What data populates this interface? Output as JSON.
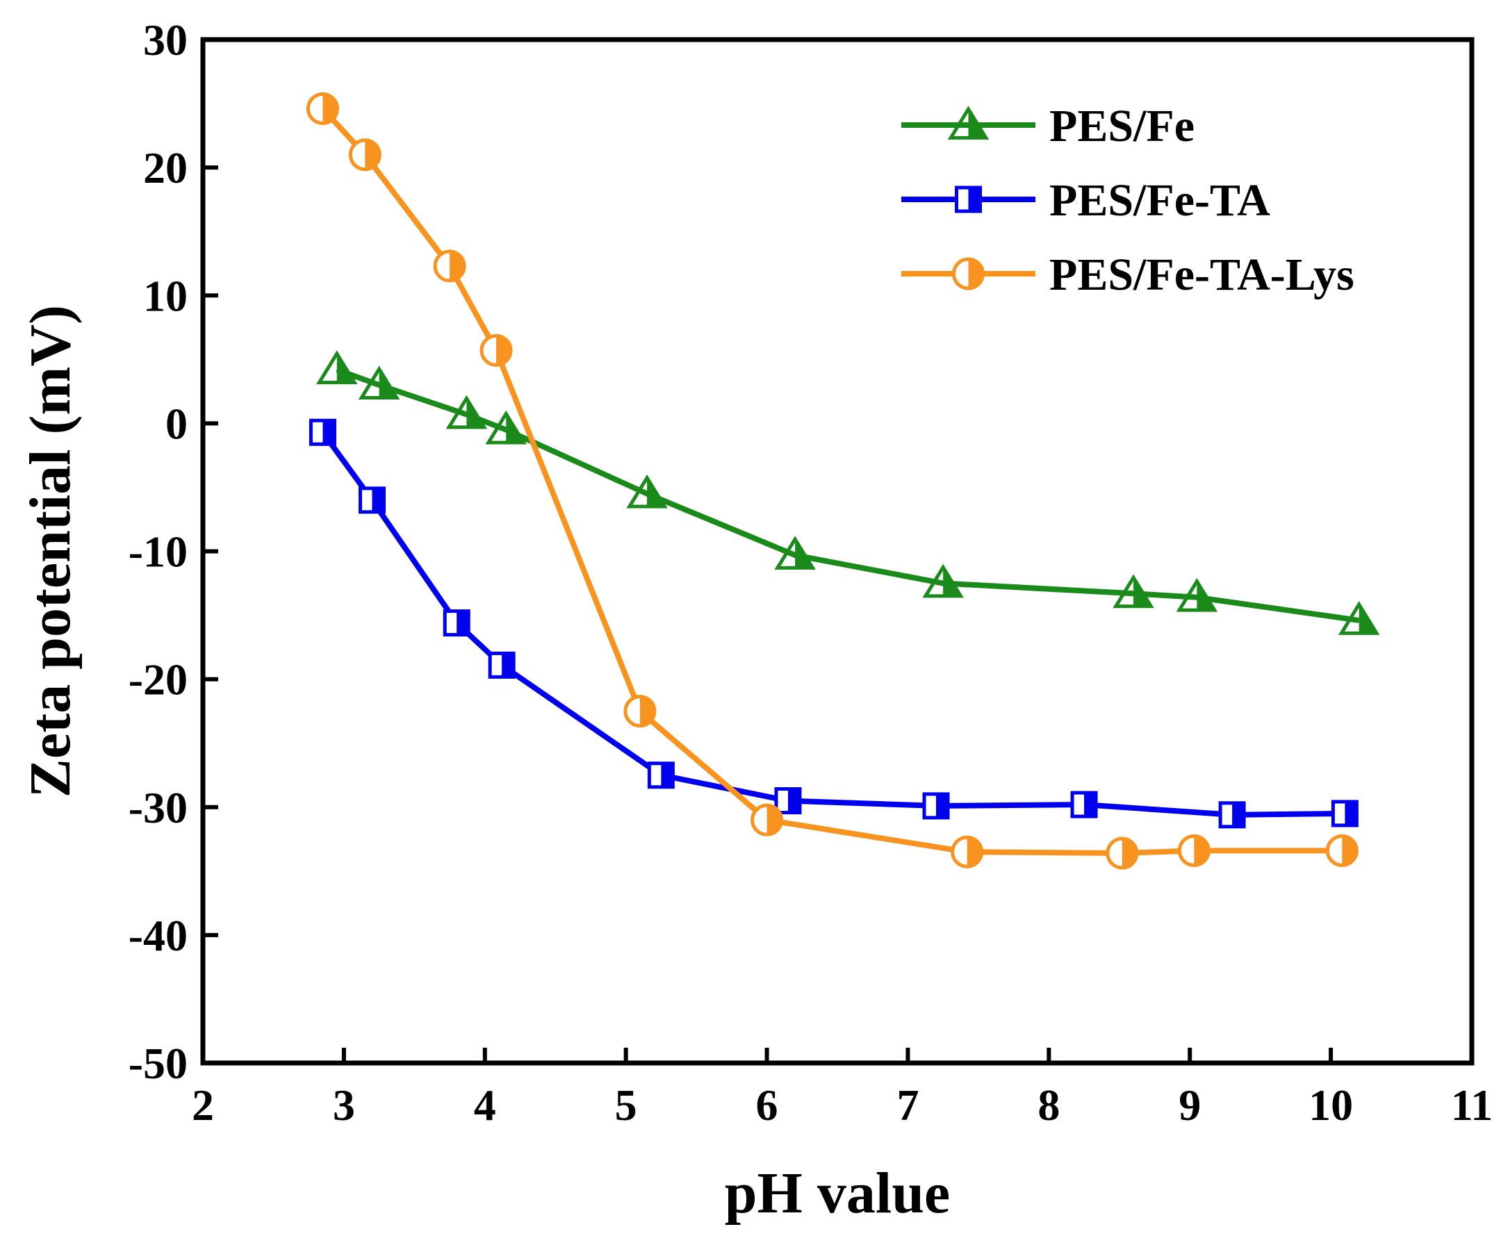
{
  "chart_data": {
    "type": "line",
    "title": "",
    "xlabel": "pH value",
    "ylabel": "Zeta potential (mV)",
    "xlim": [
      2,
      11
    ],
    "ylim": [
      -50,
      30
    ],
    "xticks": [
      2,
      3,
      4,
      5,
      6,
      7,
      8,
      9,
      10,
      11
    ],
    "yticks": [
      -50,
      -40,
      -30,
      -20,
      -10,
      0,
      10,
      20,
      30
    ],
    "grid": false,
    "legend_position": "top-right",
    "series": [
      {
        "name": "PES/Fe",
        "color": "#1a8a1a",
        "marker": "half-filled-triangle",
        "x": [
          2.95,
          3.25,
          3.87,
          4.15,
          5.15,
          6.2,
          7.25,
          8.6,
          9.05,
          10.2
        ],
        "y": [
          4.2,
          3.0,
          0.7,
          -0.5,
          -5.5,
          -10.3,
          -12.5,
          -13.3,
          -13.6,
          -15.4
        ]
      },
      {
        "name": "PES/Fe-TA",
        "color": "#0000ee",
        "marker": "half-filled-square",
        "x": [
          2.85,
          3.2,
          3.8,
          4.12,
          5.25,
          6.15,
          7.2,
          8.25,
          9.3,
          10.1
        ],
        "y": [
          -0.7,
          -6.0,
          -15.6,
          -18.9,
          -27.5,
          -29.5,
          -29.9,
          -29.8,
          -30.6,
          -30.5
        ]
      },
      {
        "name": "PES/Fe-TA-Lys",
        "color": "#f7931e",
        "marker": "half-filled-circle",
        "x": [
          2.85,
          3.15,
          3.75,
          4.08,
          5.1,
          6.0,
          7.42,
          8.52,
          9.03,
          10.08
        ],
        "y": [
          24.6,
          21.0,
          12.3,
          5.7,
          -22.5,
          -31.0,
          -33.5,
          -33.6,
          -33.4,
          -33.4
        ]
      }
    ]
  }
}
